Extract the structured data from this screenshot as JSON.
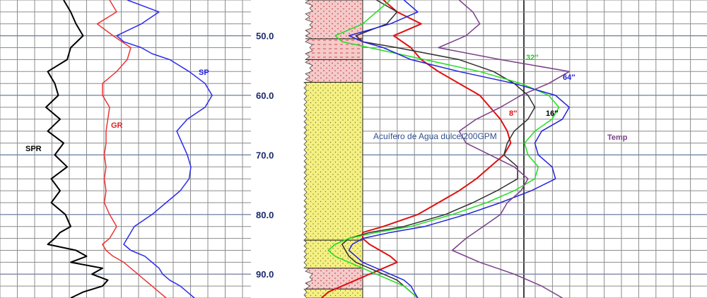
{
  "chart_data": {
    "type": "line",
    "title": "",
    "y_axis": {
      "label": "",
      "ticks": [
        50.0,
        60.0,
        70.0,
        80.0,
        90.0
      ],
      "tick_labels": [
        "50.0",
        "60.0",
        "70.0",
        "80.0",
        "90.0"
      ],
      "range": [
        44,
        94
      ],
      "inverted": true
    },
    "annotation": "Acuífero de Agua dulce/200GPM",
    "track1": {
      "series": [
        {
          "name": "SPR",
          "color": "#000000",
          "depth": [
            44,
            46,
            48,
            50,
            52,
            54,
            56,
            58,
            60,
            62,
            64,
            66,
            68,
            70,
            72,
            74,
            76,
            78,
            80,
            82,
            83,
            84,
            85,
            86,
            87,
            88,
            89,
            90,
            91,
            92,
            93,
            94
          ],
          "x": [
            0.36,
            0.4,
            0.43,
            0.47,
            0.4,
            0.38,
            0.27,
            0.31,
            0.33,
            0.26,
            0.34,
            0.27,
            0.36,
            0.31,
            0.38,
            0.29,
            0.34,
            0.29,
            0.37,
            0.4,
            0.34,
            0.31,
            0.27,
            0.43,
            0.49,
            0.4,
            0.58,
            0.52,
            0.61,
            0.58,
            0.47,
            0.4
          ]
        },
        {
          "name": "GR",
          "color": "#ee3333",
          "depth": [
            44,
            46,
            48,
            50,
            52,
            54,
            56,
            58,
            60,
            62,
            64,
            66,
            68,
            70,
            72,
            74,
            76,
            78,
            80,
            82,
            84,
            85,
            86,
            87,
            88,
            89,
            90,
            91,
            92,
            93,
            94
          ],
          "x": [
            0.62,
            0.66,
            0.55,
            0.64,
            0.74,
            0.72,
            0.66,
            0.58,
            0.58,
            0.62,
            0.61,
            0.6,
            0.6,
            0.59,
            0.6,
            0.59,
            0.6,
            0.59,
            0.62,
            0.66,
            0.62,
            0.58,
            0.6,
            0.64,
            0.7,
            0.74,
            0.78,
            0.82,
            0.86,
            0.9,
            0.94
          ]
        },
        {
          "name": "SP",
          "color": "#2b2bee",
          "depth": [
            44,
            46,
            48,
            50,
            51,
            52,
            53,
            54,
            56,
            58,
            60,
            62,
            64,
            66,
            68,
            70,
            72,
            74,
            76,
            78,
            80,
            82,
            83,
            84,
            85,
            86,
            87,
            88,
            89,
            90,
            91,
            92,
            93,
            94
          ],
          "x": [
            0.72,
            0.9,
            0.8,
            0.66,
            0.7,
            0.8,
            0.86,
            0.96,
            1.07,
            1.16,
            1.2,
            1.16,
            1.06,
            1.0,
            1.03,
            1.06,
            1.08,
            1.07,
            1.02,
            0.94,
            0.86,
            0.76,
            0.74,
            0.72,
            0.7,
            0.74,
            0.82,
            0.86,
            0.9,
            0.92,
            0.96,
            1.02,
            1.06,
            1.1
          ]
        }
      ]
    },
    "track2": {
      "series": [
        {
          "name": "8″",
          "color": "#e01010",
          "depth": [
            44,
            46,
            48,
            50,
            52,
            54,
            56,
            58,
            60,
            62,
            64,
            66,
            68,
            70,
            72,
            74,
            76,
            78,
            80,
            82,
            83,
            84,
            85,
            86,
            87,
            88,
            89,
            90,
            91,
            92,
            93,
            94
          ],
          "x": [
            0.06,
            0.1,
            0.17,
            0.09,
            0.14,
            0.17,
            0.22,
            0.28,
            0.34,
            0.37,
            0.4,
            0.42,
            0.43,
            0.41,
            0.37,
            0.33,
            0.28,
            0.22,
            0.16,
            0.06,
            0.0,
            0.0,
            0.02,
            0.05,
            0.08,
            0.1,
            0.06,
            0.02,
            -0.02,
            -0.06,
            -0.1,
            -0.12
          ]
        },
        {
          "name": "16″",
          "color": "#303030",
          "depth": [
            44,
            46,
            48,
            50,
            51,
            52,
            54,
            56,
            58,
            60,
            62,
            64,
            66,
            68,
            70,
            72,
            74,
            76,
            78,
            80,
            82,
            83,
            84,
            85,
            86,
            87,
            88,
            89,
            90,
            91,
            92,
            93,
            94
          ],
          "x": [
            0.04,
            0.1,
            0.07,
            -0.02,
            0.0,
            0.1,
            0.28,
            0.38,
            0.44,
            0.48,
            0.5,
            0.48,
            0.44,
            0.42,
            0.41,
            0.45,
            0.45,
            0.39,
            0.32,
            0.24,
            0.12,
            0.02,
            -0.04,
            -0.06,
            -0.05,
            -0.04,
            -0.02,
            0.02,
            0.06,
            0.1,
            0.12,
            0.14,
            0.16
          ]
        },
        {
          "name": "32″",
          "color": "#22dd22",
          "depth": [
            44,
            46,
            48,
            50,
            51,
            52,
            54,
            56,
            58,
            60,
            62,
            64,
            66,
            68,
            70,
            72,
            74,
            76,
            78,
            80,
            82,
            83,
            84,
            85,
            86,
            87,
            88,
            89,
            90,
            91,
            92,
            93,
            94
          ],
          "x": [
            0.08,
            0.04,
            0.0,
            -0.08,
            -0.06,
            0.02,
            0.18,
            0.34,
            0.46,
            0.54,
            0.57,
            0.55,
            0.5,
            0.47,
            0.48,
            0.51,
            0.5,
            0.44,
            0.36,
            0.26,
            0.14,
            0.04,
            -0.04,
            -0.08,
            -0.1,
            -0.08,
            -0.04,
            0.0,
            0.04,
            0.08,
            0.12,
            0.14,
            0.16
          ]
        },
        {
          "name": "64″",
          "color": "#2222dd",
          "depth": [
            44,
            46,
            48,
            50,
            51,
            52,
            54,
            56,
            58,
            60,
            62,
            64,
            66,
            68,
            70,
            72,
            74,
            76,
            78,
            80,
            82,
            83,
            84,
            85,
            86,
            87,
            88,
            89,
            90,
            91,
            92,
            93,
            94
          ],
          "x": [
            0.12,
            0.16,
            0.08,
            -0.04,
            0.0,
            0.06,
            0.14,
            0.28,
            0.44,
            0.56,
            0.6,
            0.58,
            0.52,
            0.5,
            0.51,
            0.55,
            0.56,
            0.49,
            0.4,
            0.3,
            0.18,
            0.08,
            0.0,
            -0.03,
            -0.04,
            -0.02,
            0.0,
            0.04,
            0.08,
            0.12,
            0.14,
            0.15,
            0.16
          ]
        },
        {
          "name": "Temp",
          "color": "#7a3f8a",
          "depth": [
            44,
            46,
            48,
            50,
            52,
            54,
            56,
            58,
            60,
            62,
            64,
            66,
            68,
            70,
            72,
            74,
            76,
            78,
            80,
            82,
            84,
            86,
            88,
            90,
            92,
            94
          ],
          "x": [
            0.28,
            0.32,
            0.34,
            0.3,
            0.22,
            0.4,
            0.6,
            0.54,
            0.46,
            0.4,
            0.33,
            0.28,
            0.3,
            0.37,
            0.44,
            0.48,
            0.46,
            0.42,
            0.4,
            0.35,
            0.3,
            0.26,
            0.34,
            0.44,
            0.52,
            0.58
          ]
        }
      ]
    },
    "lithology": [
      {
        "top": 44,
        "base": 50.5,
        "type": "shale-sandy",
        "color": "#f2c6c6"
      },
      {
        "top": 50.5,
        "base": 54,
        "type": "shale",
        "color": "#f2c6c6"
      },
      {
        "top": 54,
        "base": 57.8,
        "type": "shale-sandy",
        "color": "#f2c6c6"
      },
      {
        "top": 57.8,
        "base": 84.3,
        "type": "sand",
        "color": "#f4f082"
      },
      {
        "top": 84.3,
        "base": 89,
        "type": "sand",
        "color": "#f4f082"
      },
      {
        "top": 89,
        "base": 92.5,
        "type": "shale-sandy",
        "color": "#f2c6c6"
      },
      {
        "top": 92.5,
        "base": 94,
        "type": "sand",
        "color": "#f4f082"
      }
    ]
  }
}
